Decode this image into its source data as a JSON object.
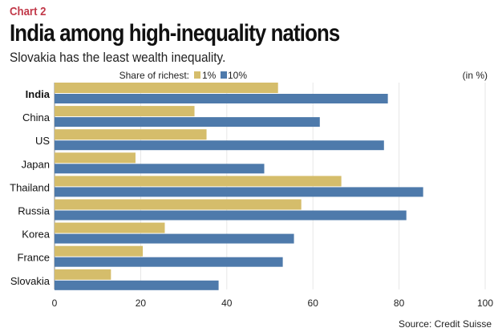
{
  "header": {
    "kicker": "Chart 2",
    "title": "India among high-inequality nations",
    "subtitle": "Slovakia has the least wealth inequality."
  },
  "source": "Source: Credit Suisse",
  "chart_data": {
    "type": "bar",
    "orientation": "horizontal",
    "unit_label": "(in %)",
    "legend_title": "Share of richest:",
    "legend_placement": "top",
    "categories": [
      "India",
      "China",
      "US",
      "Japan",
      "Thailand",
      "Russia",
      "Korea",
      "France",
      "Slovakia"
    ],
    "highlighted_category": "India",
    "series": [
      {
        "name": "1%",
        "color": "#d5bd6b",
        "values": [
          51.9,
          32.5,
          35.3,
          18.8,
          66.6,
          57.3,
          25.6,
          20.5,
          13.1
        ]
      },
      {
        "name": "10%",
        "color": "#4e7aab",
        "values": [
          77.4,
          61.6,
          76.5,
          48.7,
          85.6,
          81.7,
          55.6,
          53.0,
          38.1
        ]
      }
    ],
    "xlim": [
      0,
      100
    ],
    "xticks": [
      "0",
      "20",
      "40",
      "60",
      "80",
      "100"
    ],
    "grid": true
  }
}
